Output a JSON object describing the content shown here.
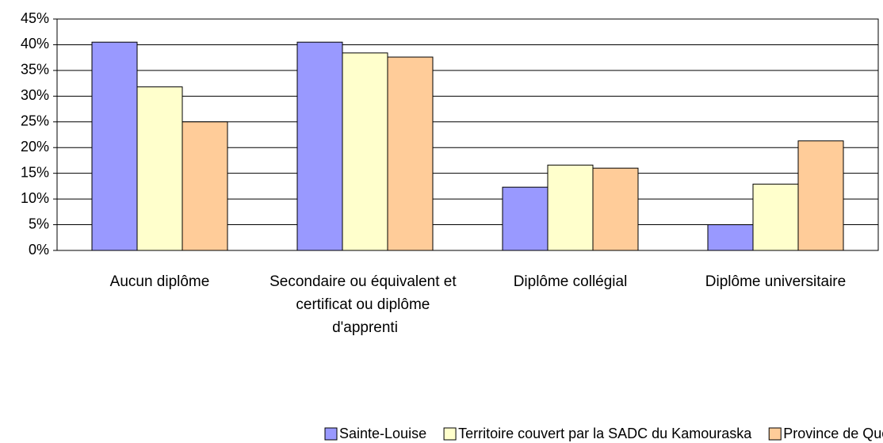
{
  "chart_data": {
    "type": "bar",
    "categories": [
      "Aucun diplôme",
      "Secondaire ou équivalent et certificat ou diplôme d'apprenti",
      "Diplôme collégial",
      "Diplôme universitaire"
    ],
    "series": [
      {
        "name": "Sainte-Louise",
        "color": "#9999ff",
        "values": [
          40.5,
          40.5,
          12.3,
          5.0
        ]
      },
      {
        "name": "Territoire couvert par la SADC du Kamouraska",
        "color": "#ffffcc",
        "values": [
          31.8,
          38.4,
          16.6,
          12.9
        ]
      },
      {
        "name": "Province de Québec",
        "color": "#ffcc99",
        "values": [
          25.0,
          37.6,
          16.0,
          21.3
        ]
      }
    ],
    "ylim": [
      0,
      45
    ],
    "yticks": [
      {
        "value": 0,
        "label": "0%"
      },
      {
        "value": 5,
        "label": "5%"
      },
      {
        "value": 10,
        "label": "10%"
      },
      {
        "value": 15,
        "label": "15%"
      },
      {
        "value": 20,
        "label": "20%"
      },
      {
        "value": 25,
        "label": "25%"
      },
      {
        "value": 30,
        "label": "30%"
      },
      {
        "value": 35,
        "label": "35%"
      },
      {
        "value": 40,
        "label": "40%"
      },
      {
        "value": 45,
        "label": "45%"
      }
    ],
    "grid": true,
    "legend": "bottom"
  }
}
